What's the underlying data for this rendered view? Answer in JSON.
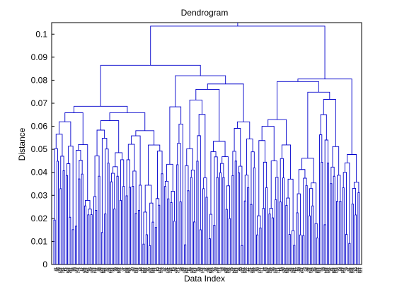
{
  "chart_data": {
    "type": "dendrogram",
    "title": "Dendrogram",
    "xlabel": "Data Index",
    "ylabel": "Distance",
    "ylim": [
      0,
      0.105
    ],
    "yticks": [
      "0",
      "0.01",
      "0.02",
      "0.03",
      "0.04",
      "0.05",
      "0.06",
      "0.07",
      "0.08",
      "0.09",
      "0.1"
    ],
    "leaf_count": 200,
    "grid": false,
    "legend": "none",
    "line_color": "#0000cc",
    "merges": [
      [
        0.0897,
        0.0876,
        0.1035
      ],
      [
        0.1035,
        0.0972,
        0.1035
      ],
      [
        0.082,
        0.08,
        0.088
      ],
      [
        0.086,
        0.079,
        0.095
      ]
    ]
  }
}
